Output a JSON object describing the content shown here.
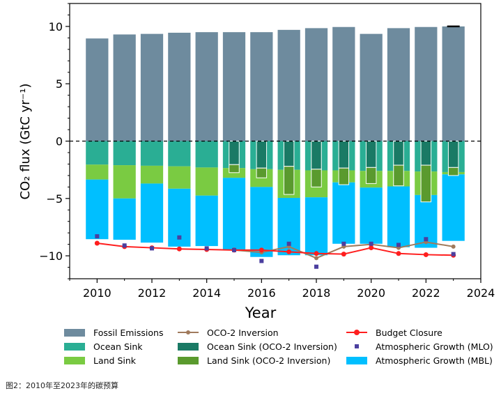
{
  "chart_data": {
    "type": "bar",
    "xlabel": "Year",
    "ylabel": "CO₂ flux (GtC yr⁻¹)",
    "xlim": [
      2009,
      2024
    ],
    "ylim": [
      -12,
      12
    ],
    "x_ticks": [
      2010,
      2012,
      2014,
      2016,
      2018,
      2020,
      2022,
      2024
    ],
    "y_ticks": [
      10,
      5,
      0,
      -5,
      -10
    ],
    "grid": false,
    "zero_line": "dashed",
    "legend_position": "bottom",
    "years": [
      2010,
      2011,
      2012,
      2013,
      2014,
      2015,
      2016,
      2017,
      2018,
      2019,
      2020,
      2021,
      2022,
      2023
    ],
    "series": [
      {
        "name": "Fossil Emissions",
        "kind": "bar",
        "color": "#6e8b9e",
        "values": [
          8.95,
          9.3,
          9.35,
          9.45,
          9.5,
          9.5,
          9.5,
          9.7,
          9.85,
          9.95,
          9.35,
          9.85,
          9.95,
          10.0
        ]
      },
      {
        "name": "Ocean Sink",
        "kind": "bar",
        "color": "#2aae94",
        "values": [
          -2.05,
          -2.1,
          -2.15,
          -2.2,
          -2.3,
          -2.35,
          -2.45,
          -2.5,
          -2.55,
          -2.55,
          -2.6,
          -2.6,
          -2.65,
          -2.7
        ]
      },
      {
        "name": "Land Sink",
        "kind": "bar",
        "color": "#7acb42",
        "values": [
          -1.3,
          -2.9,
          -1.55,
          -1.95,
          -2.45,
          -0.85,
          -1.55,
          -2.45,
          -2.35,
          -1.05,
          -1.45,
          -1.35,
          -2.05,
          -0.2
        ]
      },
      {
        "name": "Atmospheric Growth (MBL)",
        "kind": "bar",
        "color": "#00bfff",
        "values": [
          -5.2,
          -3.6,
          -5.15,
          -5.05,
          -4.4,
          -6.3,
          -6.1,
          -5.0,
          -5.05,
          -5.35,
          -4.9,
          -5.3,
          -4.6,
          -5.8
        ]
      },
      {
        "name": "Ocean Sink (OCO-2 Inversion)",
        "kind": "inner-bar",
        "color": "#1a7a65",
        "x": [
          2015,
          2016,
          2017,
          2018,
          2019,
          2020,
          2021,
          2022,
          2023
        ],
        "values": [
          -2.05,
          -2.35,
          -2.2,
          -2.45,
          -2.35,
          -2.3,
          -2.1,
          -2.1,
          -2.3
        ]
      },
      {
        "name": "Land Sink (OCO-2 Inversion)",
        "kind": "inner-bar",
        "color": "#5a9a2e",
        "x": [
          2015,
          2016,
          2017,
          2018,
          2019,
          2020,
          2021,
          2022,
          2023
        ],
        "values": [
          -0.7,
          -0.85,
          -2.45,
          -1.55,
          -1.45,
          -1.4,
          -1.8,
          -3.2,
          -0.7
        ]
      },
      {
        "name": "OCO-2 Inversion",
        "kind": "line",
        "color": "#a07a5c",
        "x": [
          2015,
          2016,
          2017,
          2018,
          2019,
          2020,
          2021,
          2022,
          2023
        ],
        "values": [
          -9.5,
          -9.7,
          -9.2,
          -10.2,
          -9.2,
          -9.0,
          -9.3,
          -8.8,
          -9.2
        ]
      },
      {
        "name": "Budget Closure",
        "kind": "line",
        "color": "#ff1e1e",
        "values": [
          -8.9,
          -9.2,
          -9.3,
          -9.4,
          -9.45,
          -9.5,
          -9.5,
          -9.65,
          -9.8,
          -9.85,
          -9.3,
          -9.8,
          -9.9,
          -9.95
        ]
      },
      {
        "name": "Atmospheric Growth (MLO)",
        "kind": "marker",
        "color": "#4b3f9f",
        "values": [
          -8.3,
          -9.1,
          -9.35,
          -8.4,
          -9.35,
          -9.5,
          -10.45,
          -8.95,
          -10.95,
          -8.95,
          -8.95,
          -9.05,
          -8.55,
          -9.85
        ]
      }
    ],
    "legend": {
      "fossil": "Fossil Emissions",
      "ocean": "Ocean Sink",
      "land": "Land Sink",
      "oco2": "OCO-2 Inversion",
      "ocean_oco2": "Ocean Sink (OCO-2 Inversion)",
      "land_oco2": "Land Sink (OCO-2 Inversion)",
      "budget": "Budget Closure",
      "mlo": "Atmospheric Growth (MLO)",
      "mbl": "Atmospheric Growth (MBL)"
    }
  },
  "caption": "图2：2010年至2023年的碳预算"
}
